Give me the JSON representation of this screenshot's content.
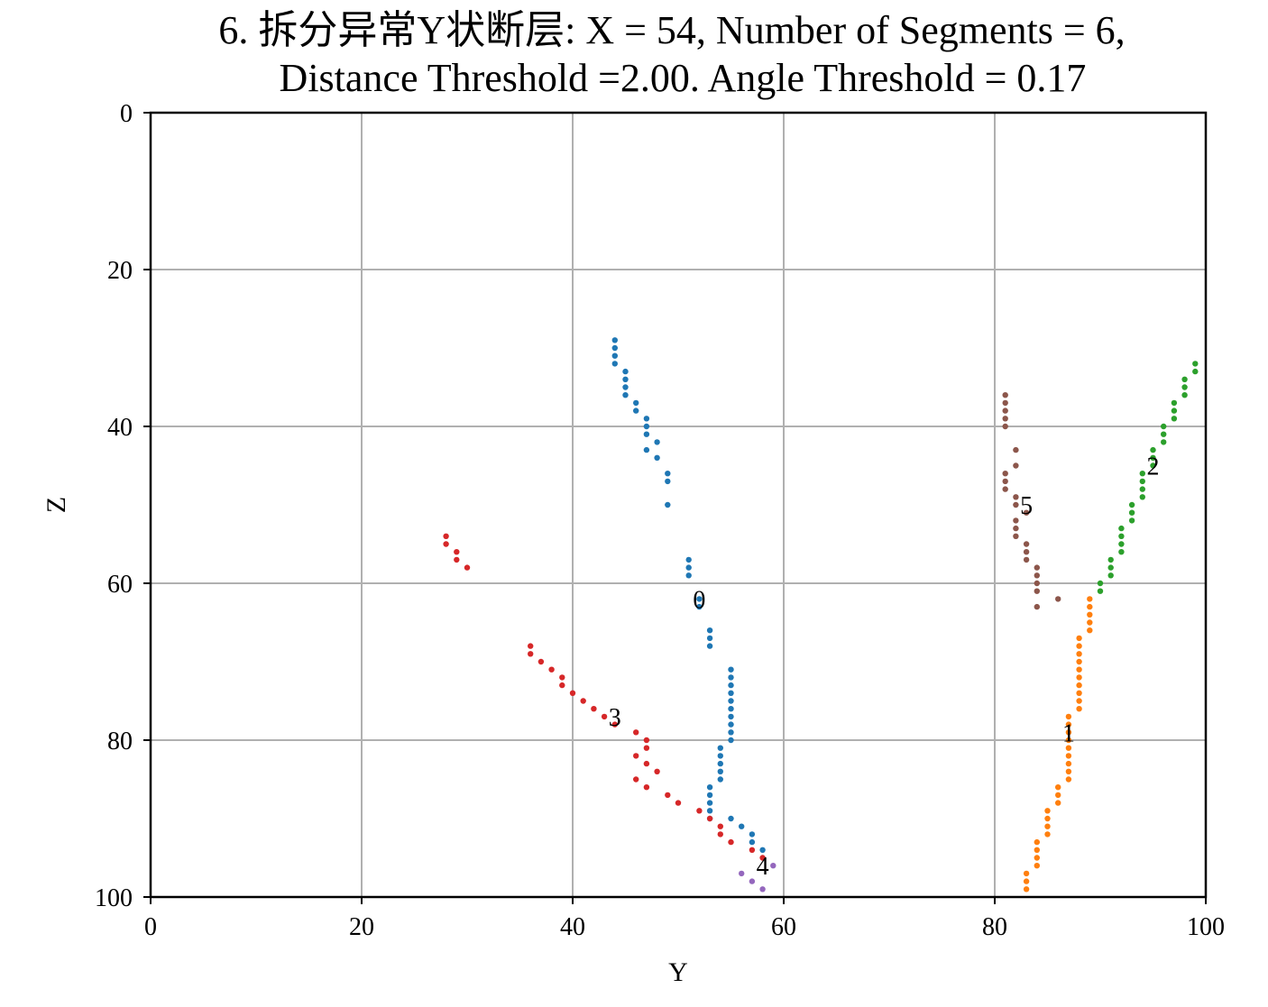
{
  "chart_data": {
    "type": "scatter",
    "title_lines": [
      "6. 拆分异常Y状断层: X = 54, Number of Segments = 6,",
      "Distance Threshold =2.00. Angle Threshold = 0.17"
    ],
    "xlabel": "Y",
    "ylabel": "Z",
    "xlim": [
      0,
      100
    ],
    "ylim": [
      100,
      0
    ],
    "y_inverted": true,
    "xticks": [
      0,
      20,
      40,
      60,
      80,
      100
    ],
    "yticks": [
      0,
      20,
      40,
      60,
      80,
      100
    ],
    "grid": true,
    "legend": "none",
    "series": [
      {
        "label": "0",
        "label_at": [
          52,
          62
        ],
        "color": "#1f77b4",
        "points": [
          [
            44,
            29
          ],
          [
            44,
            30
          ],
          [
            44,
            31
          ],
          [
            44,
            32
          ],
          [
            45,
            33
          ],
          [
            45,
            34
          ],
          [
            45,
            35
          ],
          [
            45,
            36
          ],
          [
            46,
            37
          ],
          [
            46,
            38
          ],
          [
            47,
            39
          ],
          [
            47,
            40
          ],
          [
            47,
            41
          ],
          [
            48,
            42
          ],
          [
            47,
            43
          ],
          [
            48,
            44
          ],
          [
            49,
            46
          ],
          [
            49,
            47
          ],
          [
            49,
            50
          ],
          [
            51,
            57
          ],
          [
            51,
            58
          ],
          [
            51,
            59
          ],
          [
            52,
            62
          ],
          [
            52,
            63
          ],
          [
            53,
            66
          ],
          [
            53,
            67
          ],
          [
            53,
            68
          ],
          [
            55,
            71
          ],
          [
            55,
            72
          ],
          [
            55,
            73
          ],
          [
            55,
            74
          ],
          [
            55,
            75
          ],
          [
            55,
            76
          ],
          [
            55,
            77
          ],
          [
            55,
            78
          ],
          [
            55,
            79
          ],
          [
            55,
            80
          ],
          [
            54,
            81
          ],
          [
            54,
            82
          ],
          [
            54,
            83
          ],
          [
            54,
            84
          ],
          [
            54,
            85
          ],
          [
            53,
            86
          ],
          [
            53,
            87
          ],
          [
            53,
            88
          ],
          [
            53,
            89
          ],
          [
            53,
            90
          ],
          [
            55,
            90
          ],
          [
            56,
            91
          ],
          [
            57,
            92
          ],
          [
            57,
            93
          ],
          [
            58,
            94
          ]
        ]
      },
      {
        "label": "1",
        "label_at": [
          87,
          79
        ],
        "color": "#ff7f0e",
        "points": [
          [
            89,
            62
          ],
          [
            89,
            63
          ],
          [
            89,
            64
          ],
          [
            89,
            65
          ],
          [
            89,
            66
          ],
          [
            88,
            67
          ],
          [
            88,
            68
          ],
          [
            88,
            69
          ],
          [
            88,
            70
          ],
          [
            88,
            71
          ],
          [
            88,
            72
          ],
          [
            88,
            73
          ],
          [
            88,
            74
          ],
          [
            88,
            75
          ],
          [
            88,
            76
          ],
          [
            87,
            77
          ],
          [
            87,
            78
          ],
          [
            87,
            79
          ],
          [
            87,
            80
          ],
          [
            87,
            81
          ],
          [
            87,
            82
          ],
          [
            87,
            83
          ],
          [
            87,
            84
          ],
          [
            87,
            85
          ],
          [
            86,
            86
          ],
          [
            86,
            87
          ],
          [
            86,
            88
          ],
          [
            85,
            89
          ],
          [
            85,
            90
          ],
          [
            85,
            91
          ],
          [
            85,
            92
          ],
          [
            84,
            93
          ],
          [
            84,
            94
          ],
          [
            84,
            95
          ],
          [
            84,
            96
          ],
          [
            83,
            97
          ],
          [
            83,
            98
          ],
          [
            83,
            99
          ]
        ]
      },
      {
        "label": "2",
        "label_at": [
          95,
          45
        ],
        "color": "#2ca02c",
        "points": [
          [
            99,
            32
          ],
          [
            99,
            33
          ],
          [
            98,
            34
          ],
          [
            98,
            35
          ],
          [
            98,
            36
          ],
          [
            97,
            37
          ],
          [
            97,
            38
          ],
          [
            97,
            39
          ],
          [
            96,
            40
          ],
          [
            96,
            41
          ],
          [
            96,
            42
          ],
          [
            95,
            43
          ],
          [
            95,
            44
          ],
          [
            95,
            45
          ],
          [
            94,
            46
          ],
          [
            94,
            47
          ],
          [
            94,
            48
          ],
          [
            94,
            49
          ],
          [
            93,
            50
          ],
          [
            93,
            51
          ],
          [
            93,
            52
          ],
          [
            92,
            53
          ],
          [
            92,
            54
          ],
          [
            92,
            55
          ],
          [
            92,
            56
          ],
          [
            91,
            57
          ],
          [
            91,
            58
          ],
          [
            91,
            59
          ],
          [
            90,
            60
          ],
          [
            90,
            61
          ]
        ]
      },
      {
        "label": "3",
        "label_at": [
          44,
          77
        ],
        "color": "#d62728",
        "points": [
          [
            28,
            54
          ],
          [
            28,
            55
          ],
          [
            29,
            56
          ],
          [
            29,
            57
          ],
          [
            30,
            58
          ],
          [
            36,
            68
          ],
          [
            36,
            69
          ],
          [
            37,
            70
          ],
          [
            38,
            71
          ],
          [
            39,
            72
          ],
          [
            39,
            73
          ],
          [
            40,
            74
          ],
          [
            41,
            75
          ],
          [
            42,
            76
          ],
          [
            43,
            77
          ],
          [
            44,
            78
          ],
          [
            46,
            79
          ],
          [
            47,
            80
          ],
          [
            47,
            81
          ],
          [
            46,
            82
          ],
          [
            47,
            83
          ],
          [
            48,
            84
          ],
          [
            46,
            85
          ],
          [
            47,
            86
          ],
          [
            49,
            87
          ],
          [
            50,
            88
          ],
          [
            52,
            89
          ],
          [
            53,
            90
          ],
          [
            54,
            91
          ],
          [
            54,
            92
          ],
          [
            55,
            93
          ],
          [
            57,
            94
          ],
          [
            58,
            95
          ]
        ]
      },
      {
        "label": "4",
        "label_at": [
          58,
          96
        ],
        "color": "#9467bd",
        "points": [
          [
            59,
            96
          ],
          [
            56,
            97
          ],
          [
            57,
            98
          ],
          [
            58,
            99
          ]
        ]
      },
      {
        "label": "5",
        "label_at": [
          83,
          50
        ],
        "color": "#8c564b",
        "points": [
          [
            81,
            36
          ],
          [
            81,
            37
          ],
          [
            81,
            38
          ],
          [
            81,
            39
          ],
          [
            81,
            40
          ],
          [
            82,
            43
          ],
          [
            82,
            45
          ],
          [
            81,
            46
          ],
          [
            81,
            47
          ],
          [
            81,
            48
          ],
          [
            82,
            49
          ],
          [
            82,
            50
          ],
          [
            83,
            51
          ],
          [
            82,
            52
          ],
          [
            82,
            53
          ],
          [
            82,
            54
          ],
          [
            83,
            55
          ],
          [
            83,
            56
          ],
          [
            83,
            57
          ],
          [
            84,
            58
          ],
          [
            84,
            59
          ],
          [
            84,
            60
          ],
          [
            84,
            61
          ],
          [
            86,
            62
          ],
          [
            84,
            63
          ]
        ]
      }
    ]
  }
}
